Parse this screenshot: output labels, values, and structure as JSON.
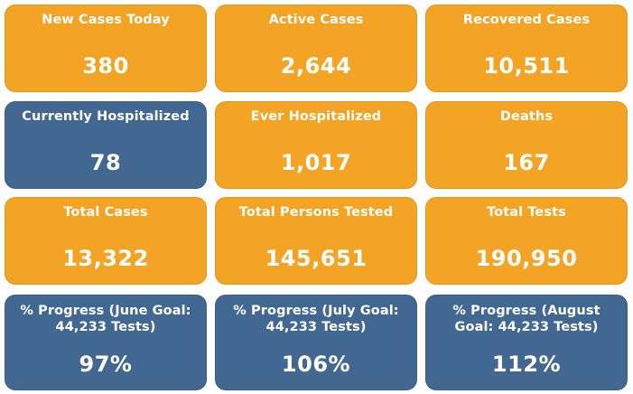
{
  "colors": {
    "orange": "#f4a424",
    "blue": "#426892",
    "text": "#ffffff"
  },
  "cards": [
    {
      "label": "New Cases Today",
      "value": "380",
      "color": "orange"
    },
    {
      "label": "Active Cases",
      "value": "2,644",
      "color": "orange"
    },
    {
      "label": "Recovered Cases",
      "value": "10,511",
      "color": "orange"
    },
    {
      "label": "Currently Hospitalized",
      "value": "78",
      "color": "blue"
    },
    {
      "label": "Ever Hospitalized",
      "value": "1,017",
      "color": "orange"
    },
    {
      "label": "Deaths",
      "value": "167",
      "color": "orange"
    },
    {
      "label": "Total Cases",
      "value": "13,322",
      "color": "orange"
    },
    {
      "label": "Total Persons Tested",
      "value": "145,651",
      "color": "orange"
    },
    {
      "label": "Total Tests",
      "value": "190,950",
      "color": "orange"
    },
    {
      "label": "% Progress (June Goal: 44,233 Tests)",
      "value": "97%",
      "color": "blue"
    },
    {
      "label": "% Progress (July Goal: 44,233 Tests)",
      "value": "106%",
      "color": "blue"
    },
    {
      "label": "% Progress (August Goal: 44,233 Tests)",
      "value": "112%",
      "color": "blue"
    }
  ]
}
